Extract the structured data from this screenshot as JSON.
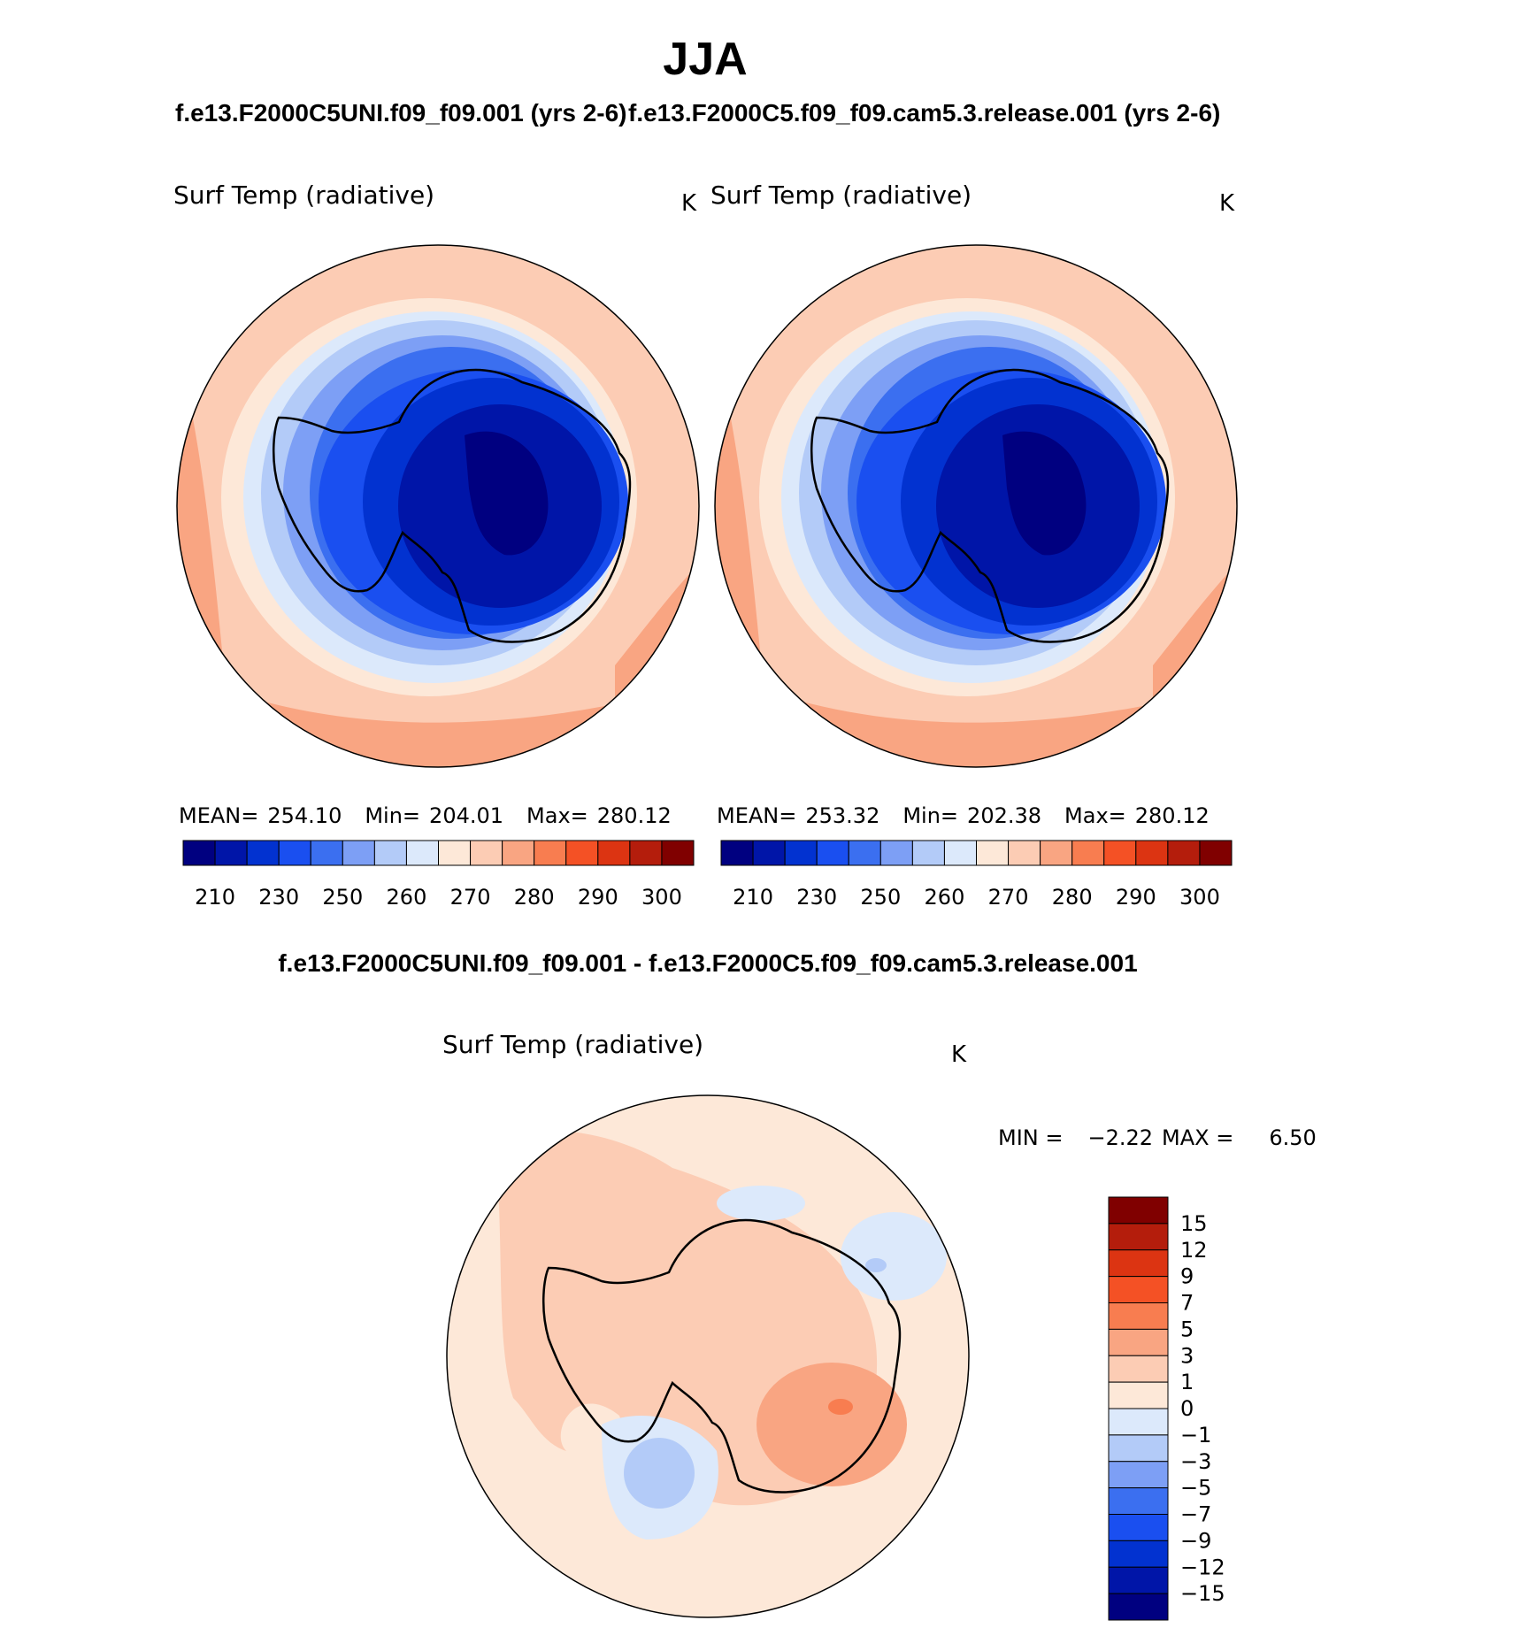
{
  "chart_data": {
    "type": "heatmap",
    "season_title": "JJA",
    "panels": [
      {
        "id": "left",
        "case_title": "f.e13.F2000C5UNI.f09_f09.001 (yrs 2-6)",
        "variable": "Surf Temp (radiative)",
        "units": "K",
        "mean_label": "MEAN=",
        "mean": "254.10",
        "min_label": "Min=",
        "min": "204.01",
        "max_label": "Max=",
        "max": "280.12"
      },
      {
        "id": "right",
        "case_title": "f.e13.F2000C5.f09_f09.cam5.3.release.001 (yrs 2-6)",
        "variable": "Surf Temp (radiative)",
        "units": "K",
        "mean_label": "MEAN=",
        "mean": "253.32",
        "min_label": "Min=",
        "min": "202.38",
        "max_label": "Max=",
        "max": "280.12"
      }
    ],
    "abs_colorbar": {
      "colors": [
        "#000080",
        "#0015a8",
        "#0232d0",
        "#1a4ff0",
        "#3b6ff0",
        "#7d9ff5",
        "#b3cbf8",
        "#dce9fb",
        "#fde8d8",
        "#fcccb4",
        "#f9a582",
        "#f87d50",
        "#f45125",
        "#dc3412",
        "#b41d0c",
        "#800000"
      ],
      "tick_labels": [
        "210",
        "230",
        "250",
        "260",
        "270",
        "280",
        "290",
        "300"
      ]
    },
    "diff_panel": {
      "title": "f.e13.F2000C5UNI.f09_f09.001 - f.e13.F2000C5.f09_f09.cam5.3.release.001",
      "variable": "Surf Temp (radiative)",
      "units": "K",
      "min_label": "MIN =",
      "min": "−2.22",
      "max_label": "MAX =",
      "max": "6.50"
    },
    "diff_colorbar": {
      "colors": [
        "#800000",
        "#b41d0c",
        "#dc3412",
        "#f45125",
        "#f87d50",
        "#f9a582",
        "#fcccb4",
        "#fde8d8",
        "#dce9fb",
        "#b3cbf8",
        "#7d9ff5",
        "#3b6ff0",
        "#1a4ff0",
        "#0232d0",
        "#0015a8",
        "#000080"
      ],
      "tick_labels": [
        "15",
        "12",
        "9",
        "7",
        "5",
        "3",
        "1",
        "0",
        "−1",
        "−3",
        "−5",
        "−7",
        "−9",
        "−12",
        "−15"
      ]
    }
  }
}
